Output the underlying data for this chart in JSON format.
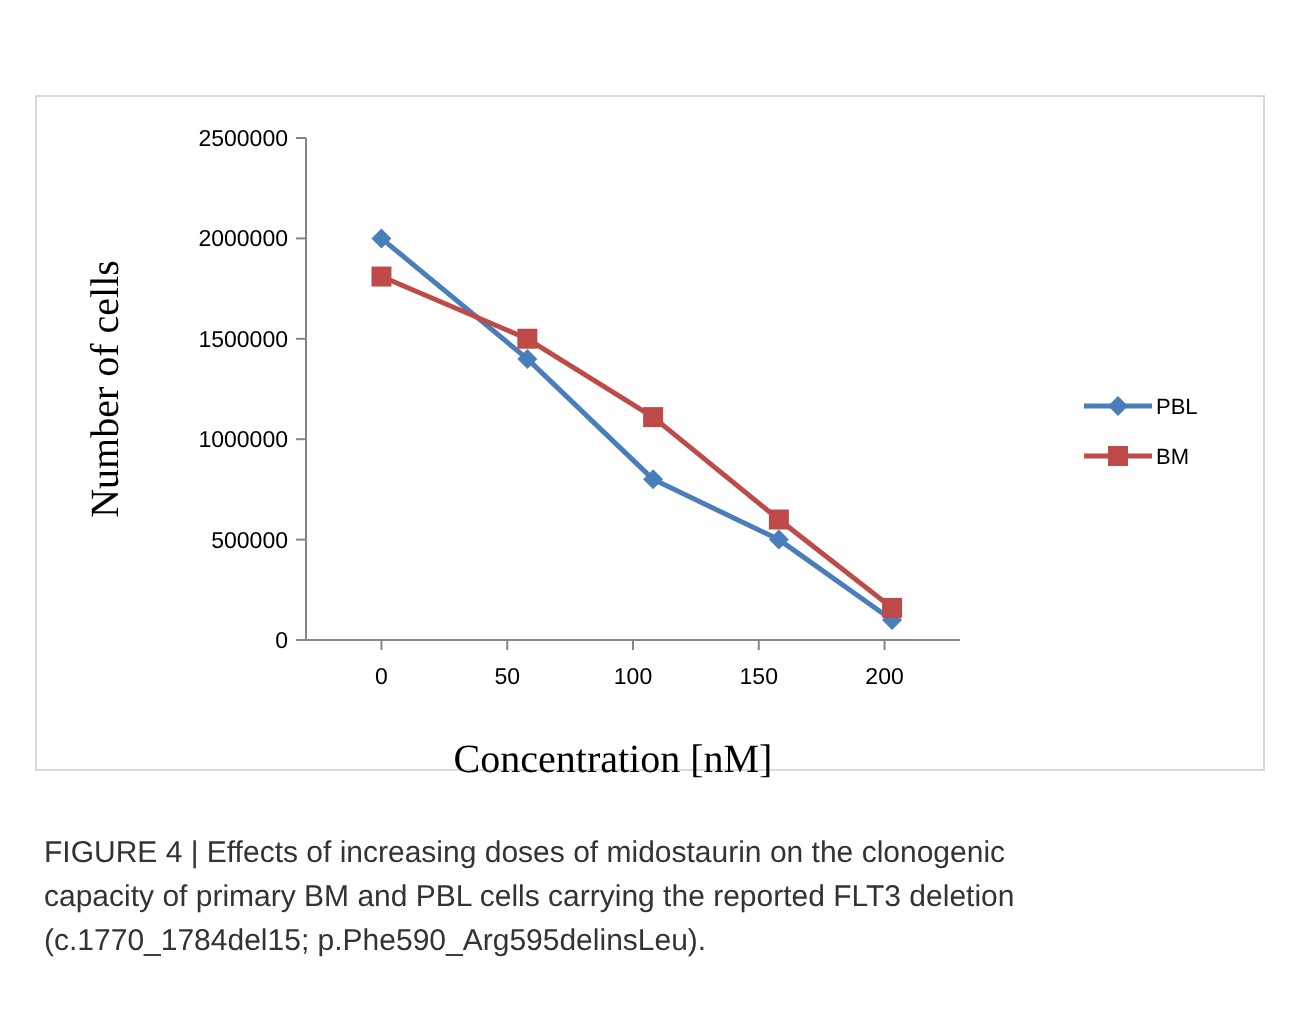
{
  "chart_data": {
    "type": "line",
    "xlabel": "Concentration [nM]",
    "ylabel": "Number of cells",
    "x": [
      0,
      58,
      108,
      158,
      203
    ],
    "series": [
      {
        "name": "PBL",
        "color": "#4a7ebb",
        "marker": "diamond",
        "values": [
          2000000,
          1400000,
          800000,
          500000,
          100000
        ]
      },
      {
        "name": "BM",
        "color": "#be4b48",
        "marker": "square",
        "values": [
          1810000,
          1500000,
          1110000,
          600000,
          160000
        ]
      }
    ],
    "xlim": [
      -30,
      230
    ],
    "xticks": [
      0,
      50,
      100,
      150,
      200
    ],
    "ylim": [
      0,
      2500000
    ],
    "yticks": [
      0,
      500000,
      1000000,
      1500000,
      2000000,
      2500000
    ],
    "grid": false,
    "legend": "right",
    "annotations": [
      "FIGURE 4 | Effects of increasing doses of midostaurin on the clonogenic capacity of primary BM and PBL cells carrying the reported FLT3 deletion (c.1770_1784del15; p.Phe590_Arg595delinsLeu)."
    ]
  }
}
